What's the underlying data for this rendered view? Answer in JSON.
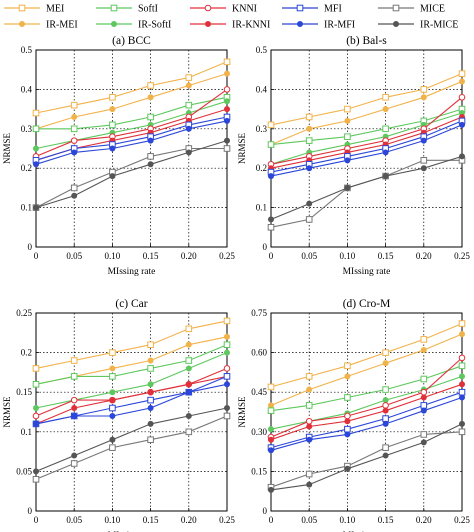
{
  "legend": [
    {
      "name": "MEI",
      "color": "#f2b24a",
      "marker": "square-open"
    },
    {
      "name": "SoftI",
      "color": "#5ec85e",
      "marker": "square-open"
    },
    {
      "name": "KNNI",
      "color": "#e0303a",
      "marker": "circle-open"
    },
    {
      "name": "MFI",
      "color": "#2b46d8",
      "marker": "square-open"
    },
    {
      "name": "MICE",
      "color": "#777777",
      "marker": "square-open"
    },
    {
      "name": "IR-MEI",
      "color": "#f2b24a",
      "marker": "circle"
    },
    {
      "name": "IR-SoftI",
      "color": "#5ec85e",
      "marker": "circle"
    },
    {
      "name": "IR-KNNI",
      "color": "#e0303a",
      "marker": "circle"
    },
    {
      "name": "IR-MFI",
      "color": "#2b46d8",
      "marker": "circle"
    },
    {
      "name": "IR-MICE",
      "color": "#555555",
      "marker": "circle"
    }
  ],
  "chart_data": [
    {
      "type": "line",
      "title": "(a) BCC",
      "xlabel": "MIssing rate",
      "ylabel": "NRMSE",
      "xlim": [
        0,
        0.25
      ],
      "ylim": [
        0,
        0.5
      ],
      "grid": true,
      "x": [
        0,
        0.05,
        0.1,
        0.15,
        0.2,
        0.25
      ],
      "xticks": [
        "0",
        "0.05",
        "0.10",
        "0.15",
        "0.20",
        "0.25"
      ],
      "yticks": [
        "0",
        "0.1",
        "0.2",
        "0.3",
        "0.4",
        "0.5"
      ],
      "series": [
        {
          "name": "MEI",
          "values": [
            0.34,
            0.36,
            0.38,
            0.41,
            0.43,
            0.47
          ]
        },
        {
          "name": "IR-MEI",
          "values": [
            0.3,
            0.33,
            0.35,
            0.38,
            0.41,
            0.44
          ]
        },
        {
          "name": "SoftI",
          "values": [
            0.3,
            0.3,
            0.31,
            0.33,
            0.36,
            0.38
          ]
        },
        {
          "name": "IR-SoftI",
          "values": [
            0.25,
            0.27,
            0.29,
            0.31,
            0.34,
            0.37
          ]
        },
        {
          "name": "KNNI",
          "values": [
            0.23,
            0.27,
            0.28,
            0.3,
            0.33,
            0.4
          ]
        },
        {
          "name": "IR-KNNI",
          "values": [
            0.22,
            0.25,
            0.27,
            0.29,
            0.32,
            0.35
          ]
        },
        {
          "name": "MFI",
          "values": [
            0.22,
            0.25,
            0.26,
            0.28,
            0.31,
            0.33
          ]
        },
        {
          "name": "IR-MFI",
          "values": [
            0.21,
            0.24,
            0.25,
            0.27,
            0.3,
            0.32
          ]
        },
        {
          "name": "MICE",
          "values": [
            0.1,
            0.15,
            0.19,
            0.23,
            0.25,
            0.25
          ]
        },
        {
          "name": "IR-MICE",
          "values": [
            0.1,
            0.13,
            0.18,
            0.21,
            0.24,
            0.27
          ]
        }
      ]
    },
    {
      "type": "line",
      "title": "(b) Bal-s",
      "xlabel": "MIssing rate",
      "ylabel": "NRMSE",
      "xlim": [
        0,
        0.25
      ],
      "ylim": [
        0,
        0.5
      ],
      "grid": true,
      "x": [
        0,
        0.05,
        0.1,
        0.15,
        0.2,
        0.25
      ],
      "xticks": [
        "0",
        "0.05",
        "0.10",
        "0.15",
        "0.20",
        "0.25"
      ],
      "yticks": [
        "0",
        "0.1",
        "0.2",
        "0.3",
        "0.4",
        "0.5"
      ],
      "series": [
        {
          "name": "MEI",
          "values": [
            0.31,
            0.33,
            0.35,
            0.38,
            0.4,
            0.44
          ]
        },
        {
          "name": "IR-MEI",
          "values": [
            0.26,
            0.3,
            0.32,
            0.35,
            0.38,
            0.42
          ]
        },
        {
          "name": "SoftI",
          "values": [
            0.26,
            0.27,
            0.28,
            0.3,
            0.32,
            0.35
          ]
        },
        {
          "name": "IR-SoftI",
          "values": [
            0.21,
            0.24,
            0.26,
            0.28,
            0.31,
            0.34
          ]
        },
        {
          "name": "KNNI",
          "values": [
            0.21,
            0.23,
            0.25,
            0.27,
            0.3,
            0.38
          ]
        },
        {
          "name": "IR-KNNI",
          "values": [
            0.2,
            0.22,
            0.24,
            0.26,
            0.29,
            0.33
          ]
        },
        {
          "name": "MFI",
          "values": [
            0.19,
            0.21,
            0.23,
            0.25,
            0.28,
            0.32
          ]
        },
        {
          "name": "IR-MFI",
          "values": [
            0.18,
            0.2,
            0.22,
            0.24,
            0.27,
            0.31
          ]
        },
        {
          "name": "MICE",
          "values": [
            0.05,
            0.07,
            0.15,
            0.18,
            0.22,
            0.22
          ]
        },
        {
          "name": "IR-MICE",
          "values": [
            0.07,
            0.11,
            0.15,
            0.18,
            0.2,
            0.23
          ]
        }
      ]
    },
    {
      "type": "line",
      "title": "(c) Car",
      "xlabel": "MIssing rate",
      "ylabel": "NRMSE",
      "xlim": [
        0,
        0.25
      ],
      "ylim": [
        0,
        0.25
      ],
      "grid": true,
      "x": [
        0,
        0.05,
        0.1,
        0.15,
        0.2,
        0.25
      ],
      "xticks": [
        "0",
        "0.05",
        "0.10",
        "0.15",
        "0.20",
        "0.25"
      ],
      "yticks": [
        "0",
        "0.05",
        "0.1",
        "0.15",
        "0.2",
        "0.25"
      ],
      "series": [
        {
          "name": "MEI",
          "values": [
            0.18,
            0.19,
            0.2,
            0.21,
            0.23,
            0.24
          ]
        },
        {
          "name": "IR-MEI",
          "values": [
            0.16,
            0.17,
            0.18,
            0.19,
            0.21,
            0.22
          ]
        },
        {
          "name": "SoftI",
          "values": [
            0.16,
            0.17,
            0.17,
            0.18,
            0.19,
            0.21
          ]
        },
        {
          "name": "IR-SoftI",
          "values": [
            0.13,
            0.14,
            0.15,
            0.16,
            0.18,
            0.2
          ]
        },
        {
          "name": "KNNI",
          "values": [
            0.12,
            0.14,
            0.14,
            0.15,
            0.16,
            0.18
          ]
        },
        {
          "name": "IR-KNNI",
          "values": [
            0.11,
            0.13,
            0.14,
            0.15,
            0.16,
            0.17
          ]
        },
        {
          "name": "MFI",
          "values": [
            0.11,
            0.12,
            0.13,
            0.14,
            0.15,
            0.17
          ]
        },
        {
          "name": "IR-MFI",
          "values": [
            0.11,
            0.12,
            0.12,
            0.13,
            0.15,
            0.16
          ]
        },
        {
          "name": "MICE",
          "values": [
            0.04,
            0.06,
            0.08,
            0.09,
            0.1,
            0.12
          ]
        },
        {
          "name": "IR-MICE",
          "values": [
            0.05,
            0.07,
            0.09,
            0.11,
            0.12,
            0.13
          ]
        }
      ]
    },
    {
      "type": "line",
      "title": "(d) Cro-M",
      "xlabel": "MIssing rate",
      "ylabel": "NRMSE",
      "xlim": [
        0,
        0.25
      ],
      "ylim": [
        0,
        0.75
      ],
      "grid": true,
      "x": [
        0,
        0.05,
        0.1,
        0.15,
        0.2,
        0.25
      ],
      "xticks": [
        "0",
        "0.05",
        "0.10",
        "0.15",
        "0.20",
        "0.25"
      ],
      "yticks": [
        "0",
        "0.15",
        "0.30",
        "0.45",
        "0.60",
        "0.75"
      ],
      "series": [
        {
          "name": "MEI",
          "values": [
            0.47,
            0.51,
            0.55,
            0.6,
            0.65,
            0.71
          ]
        },
        {
          "name": "IR-MEI",
          "values": [
            0.4,
            0.46,
            0.51,
            0.56,
            0.61,
            0.67
          ]
        },
        {
          "name": "SoftI",
          "values": [
            0.38,
            0.4,
            0.43,
            0.46,
            0.5,
            0.55
          ]
        },
        {
          "name": "IR-SoftI",
          "values": [
            0.31,
            0.34,
            0.37,
            0.42,
            0.46,
            0.51
          ]
        },
        {
          "name": "KNNI",
          "values": [
            0.28,
            0.34,
            0.36,
            0.4,
            0.45,
            0.58
          ]
        },
        {
          "name": "IR-KNNI",
          "values": [
            0.27,
            0.32,
            0.34,
            0.38,
            0.43,
            0.48
          ]
        },
        {
          "name": "MFI",
          "values": [
            0.24,
            0.28,
            0.31,
            0.35,
            0.4,
            0.45
          ]
        },
        {
          "name": "IR-MFI",
          "values": [
            0.23,
            0.27,
            0.29,
            0.33,
            0.38,
            0.43
          ]
        },
        {
          "name": "MICE",
          "values": [
            0.09,
            0.14,
            0.17,
            0.24,
            0.29,
            0.3
          ]
        },
        {
          "name": "IR-MICE",
          "values": [
            0.08,
            0.1,
            0.16,
            0.21,
            0.26,
            0.33
          ]
        }
      ]
    }
  ]
}
